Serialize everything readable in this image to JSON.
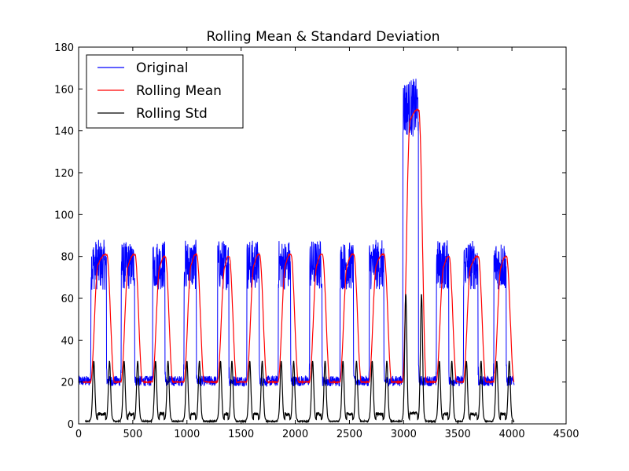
{
  "chart_data": {
    "type": "line",
    "title": "Rolling Mean & Standard Deviation",
    "xlabel": "",
    "ylabel": "",
    "xlim": [
      0,
      4500
    ],
    "ylim": [
      0,
      180
    ],
    "xticks": [
      0,
      500,
      1000,
      1500,
      2000,
      2500,
      3000,
      3500,
      4000,
      4500
    ],
    "yticks": [
      0,
      20,
      40,
      60,
      80,
      100,
      120,
      140,
      160,
      180
    ],
    "grid": false,
    "legend_position": "top-left",
    "x_start": 0,
    "x_end": 4020,
    "cycles": [
      {
        "start": 110,
        "end": 260,
        "peak": 88,
        "mean_peak": 81
      },
      {
        "start": 390,
        "end": 520,
        "peak": 87,
        "mean_peak": 81
      },
      {
        "start": 680,
        "end": 800,
        "peak": 88,
        "mean_peak": 80
      },
      {
        "start": 970,
        "end": 1090,
        "peak": 88,
        "mean_peak": 81
      },
      {
        "start": 1280,
        "end": 1390,
        "peak": 88,
        "mean_peak": 80
      },
      {
        "start": 1550,
        "end": 1670,
        "peak": 88,
        "mean_peak": 81
      },
      {
        "start": 1840,
        "end": 1960,
        "peak": 88,
        "mean_peak": 81
      },
      {
        "start": 2130,
        "end": 2250,
        "peak": 88,
        "mean_peak": 81
      },
      {
        "start": 2410,
        "end": 2540,
        "peak": 87,
        "mean_peak": 81
      },
      {
        "start": 2680,
        "end": 2820,
        "peak": 88,
        "mean_peak": 81
      },
      {
        "start": 2990,
        "end": 3140,
        "peak": 165,
        "mean_peak": 150
      },
      {
        "start": 3300,
        "end": 3420,
        "peak": 88,
        "mean_peak": 80
      },
      {
        "start": 3550,
        "end": 3690,
        "peak": 88,
        "mean_peak": 80
      },
      {
        "start": 3830,
        "end": 3950,
        "peak": 88,
        "mean_peak": 80
      }
    ],
    "baseline": 20,
    "series": [
      {
        "name": "Original",
        "color": "#0000ff"
      },
      {
        "name": "Rolling Mean",
        "color": "#ff0000"
      },
      {
        "name": "Rolling Std",
        "color": "#000000"
      }
    ]
  }
}
